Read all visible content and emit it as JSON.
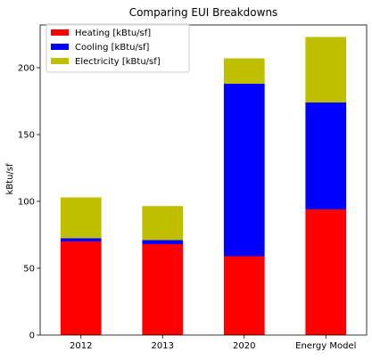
{
  "chart_data": {
    "type": "bar",
    "stacked": true,
    "title": "Comparing EUI Breakdowns",
    "xlabel": "",
    "ylabel": "kBtu/sf",
    "ylim": [
      0,
      232
    ],
    "yticks": [
      0,
      50,
      100,
      150,
      200
    ],
    "categories": [
      "2012",
      "2013",
      "2020",
      "Energy Model"
    ],
    "series": [
      {
        "name": "Heating [kBtu/sf]",
        "color": "#ff0000",
        "values": [
          70,
          68,
          59,
          94
        ]
      },
      {
        "name": "Cooling [kBtu/sf]",
        "color": "#0000ff",
        "values": [
          2.5,
          3,
          129,
          80
        ]
      },
      {
        "name": "Electricity [kBtu/sf]",
        "color": "#bfbf00",
        "values": [
          30.5,
          25.5,
          19,
          49
        ]
      }
    ],
    "legend_position": "top-left",
    "grid": false
  }
}
